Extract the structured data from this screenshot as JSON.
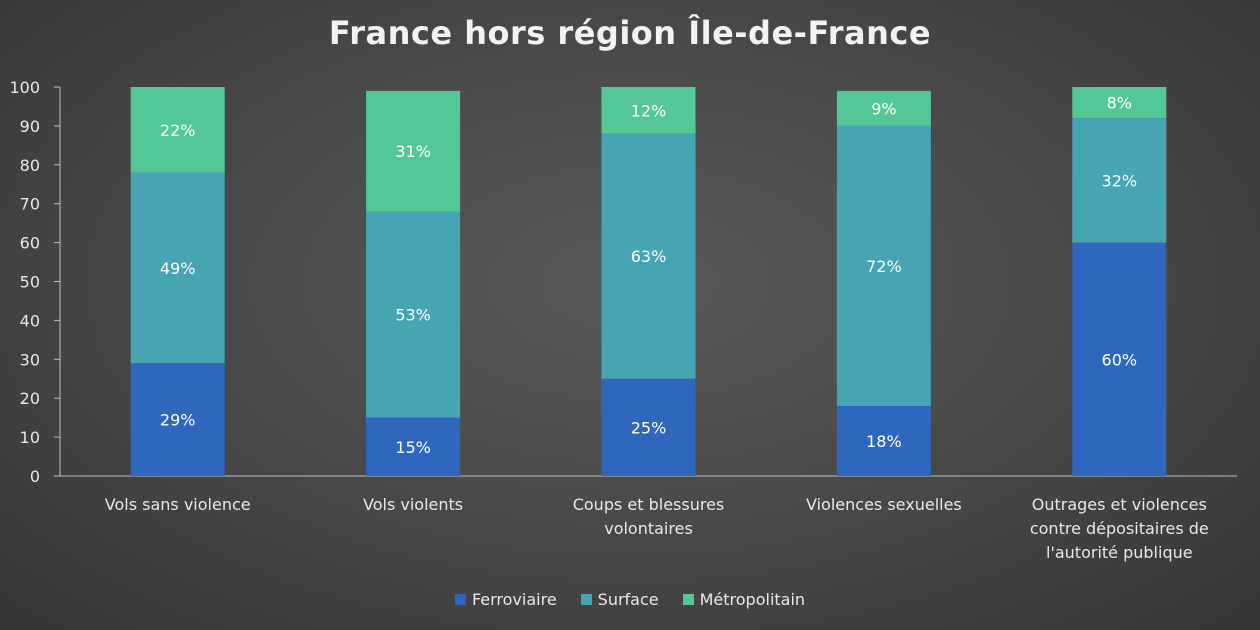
{
  "chart_data": {
    "type": "bar",
    "stacked": true,
    "title": "France hors région Île-de-France",
    "categories": [
      [
        "Vols sans violence"
      ],
      [
        "Vols violents"
      ],
      [
        "Coups et blessures",
        "volontaires"
      ],
      [
        "Violences sexuelles"
      ],
      [
        "Outrages et violences",
        "contre dépositaires de",
        "l'autorité publique"
      ]
    ],
    "series": [
      {
        "name": "Ferroviaire",
        "color": "#2f66be",
        "values": [
          29,
          15,
          25,
          18,
          60
        ],
        "labels": [
          "29%",
          "15%",
          "25%",
          "18%",
          "60%"
        ]
      },
      {
        "name": "Surface",
        "color": "#47a5b3",
        "values": [
          49,
          53,
          63,
          72,
          32
        ],
        "labels": [
          "49%",
          "53%",
          "63%",
          "72%",
          "32%"
        ]
      },
      {
        "name": "Métropolitain",
        "color": "#54c796",
        "values": [
          22,
          31,
          12,
          9,
          8
        ],
        "labels": [
          "22%",
          "31%",
          "12%",
          "9%",
          "8%"
        ]
      }
    ],
    "ylim": [
      0,
      100
    ],
    "yticks": [
      "0",
      "10",
      "20",
      "30",
      "40",
      "50",
      "60",
      "70",
      "80",
      "90",
      "100"
    ],
    "grid": false,
    "legend_position": "bottom"
  }
}
